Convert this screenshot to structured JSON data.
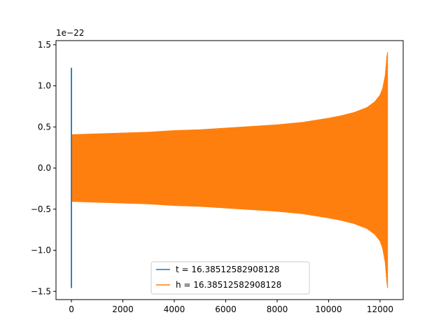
{
  "chart_data": {
    "type": "line",
    "title": "",
    "xlabel": "",
    "ylabel": "",
    "offset_text": "1e−22",
    "xlim": [
      -600,
      12900
    ],
    "ylim": [
      -1.6,
      1.55
    ],
    "x_ticks": [
      0,
      2000,
      4000,
      6000,
      8000,
      10000,
      12000
    ],
    "x_tick_labels": [
      "0",
      "2000",
      "4000",
      "6000",
      "8000",
      "10000",
      "12000"
    ],
    "y_ticks": [
      -1.5,
      -1.0,
      -0.5,
      0.0,
      0.5,
      1.0,
      1.5
    ],
    "y_tick_labels": [
      "−1.5",
      "−1.0",
      "−0.5",
      "0.0",
      "0.5",
      "1.0",
      "1.5"
    ],
    "grid": false,
    "legend_position": "lower center",
    "series": [
      {
        "name": "t = 16.38512582908128",
        "color": "#1f77b4",
        "segment": {
          "x": 0,
          "y_min": -1.46,
          "y_max": 1.22
        }
      },
      {
        "name": "h = 16.38512582908128",
        "color": "#ff7f0e",
        "envelope": {
          "x": [
            0,
            1000,
            2000,
            3000,
            4000,
            5000,
            6000,
            7000,
            8000,
            9000,
            10000,
            10500,
            11000,
            11500,
            11800,
            12000,
            12100,
            12200,
            12260,
            12290
          ],
          "upper": [
            0.41,
            0.42,
            0.43,
            0.44,
            0.46,
            0.47,
            0.49,
            0.51,
            0.53,
            0.56,
            0.61,
            0.64,
            0.68,
            0.74,
            0.81,
            0.89,
            0.97,
            1.13,
            1.35,
            1.41
          ],
          "lower": [
            -0.41,
            -0.42,
            -0.43,
            -0.44,
            -0.46,
            -0.47,
            -0.49,
            -0.51,
            -0.53,
            -0.56,
            -0.61,
            -0.64,
            -0.68,
            -0.74,
            -0.81,
            -0.89,
            -0.98,
            -1.15,
            -1.38,
            -1.46
          ]
        }
      }
    ]
  }
}
